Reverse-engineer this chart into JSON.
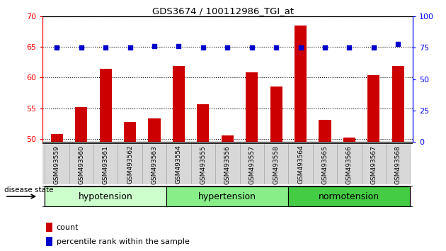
{
  "title": "GDS3674 / 100112986_TGI_at",
  "samples": [
    "GSM493559",
    "GSM493560",
    "GSM493561",
    "GSM493562",
    "GSM493563",
    "GSM493554",
    "GSM493555",
    "GSM493556",
    "GSM493557",
    "GSM493558",
    "GSM493564",
    "GSM493565",
    "GSM493566",
    "GSM493567",
    "GSM493568"
  ],
  "counts": [
    50.8,
    55.2,
    61.4,
    52.7,
    53.3,
    61.9,
    55.6,
    50.5,
    60.8,
    58.5,
    68.5,
    53.1,
    50.2,
    60.4,
    61.9
  ],
  "percentiles": [
    75,
    75,
    75,
    75,
    76,
    76,
    75,
    75,
    75,
    75,
    75,
    75,
    75,
    75,
    78
  ],
  "groups": [
    {
      "label": "hypotension",
      "start": 0,
      "end": 5,
      "color": "#ccffcc"
    },
    {
      "label": "hypertension",
      "start": 5,
      "end": 10,
      "color": "#88ee88"
    },
    {
      "label": "normotension",
      "start": 10,
      "end": 15,
      "color": "#44cc44"
    }
  ],
  "ylim_left": [
    49.5,
    70
  ],
  "ylim_right": [
    0,
    100
  ],
  "yticks_left": [
    50,
    55,
    60,
    65,
    70
  ],
  "yticks_right": [
    0,
    25,
    50,
    75,
    100
  ],
  "bar_color": "#cc0000",
  "dot_color": "#0000cc",
  "bar_width": 0.5,
  "tick_area_color": "#cccccc",
  "disease_state_label": "disease state",
  "legend_count_label": "count",
  "legend_percentile_label": "percentile rank within the sample"
}
